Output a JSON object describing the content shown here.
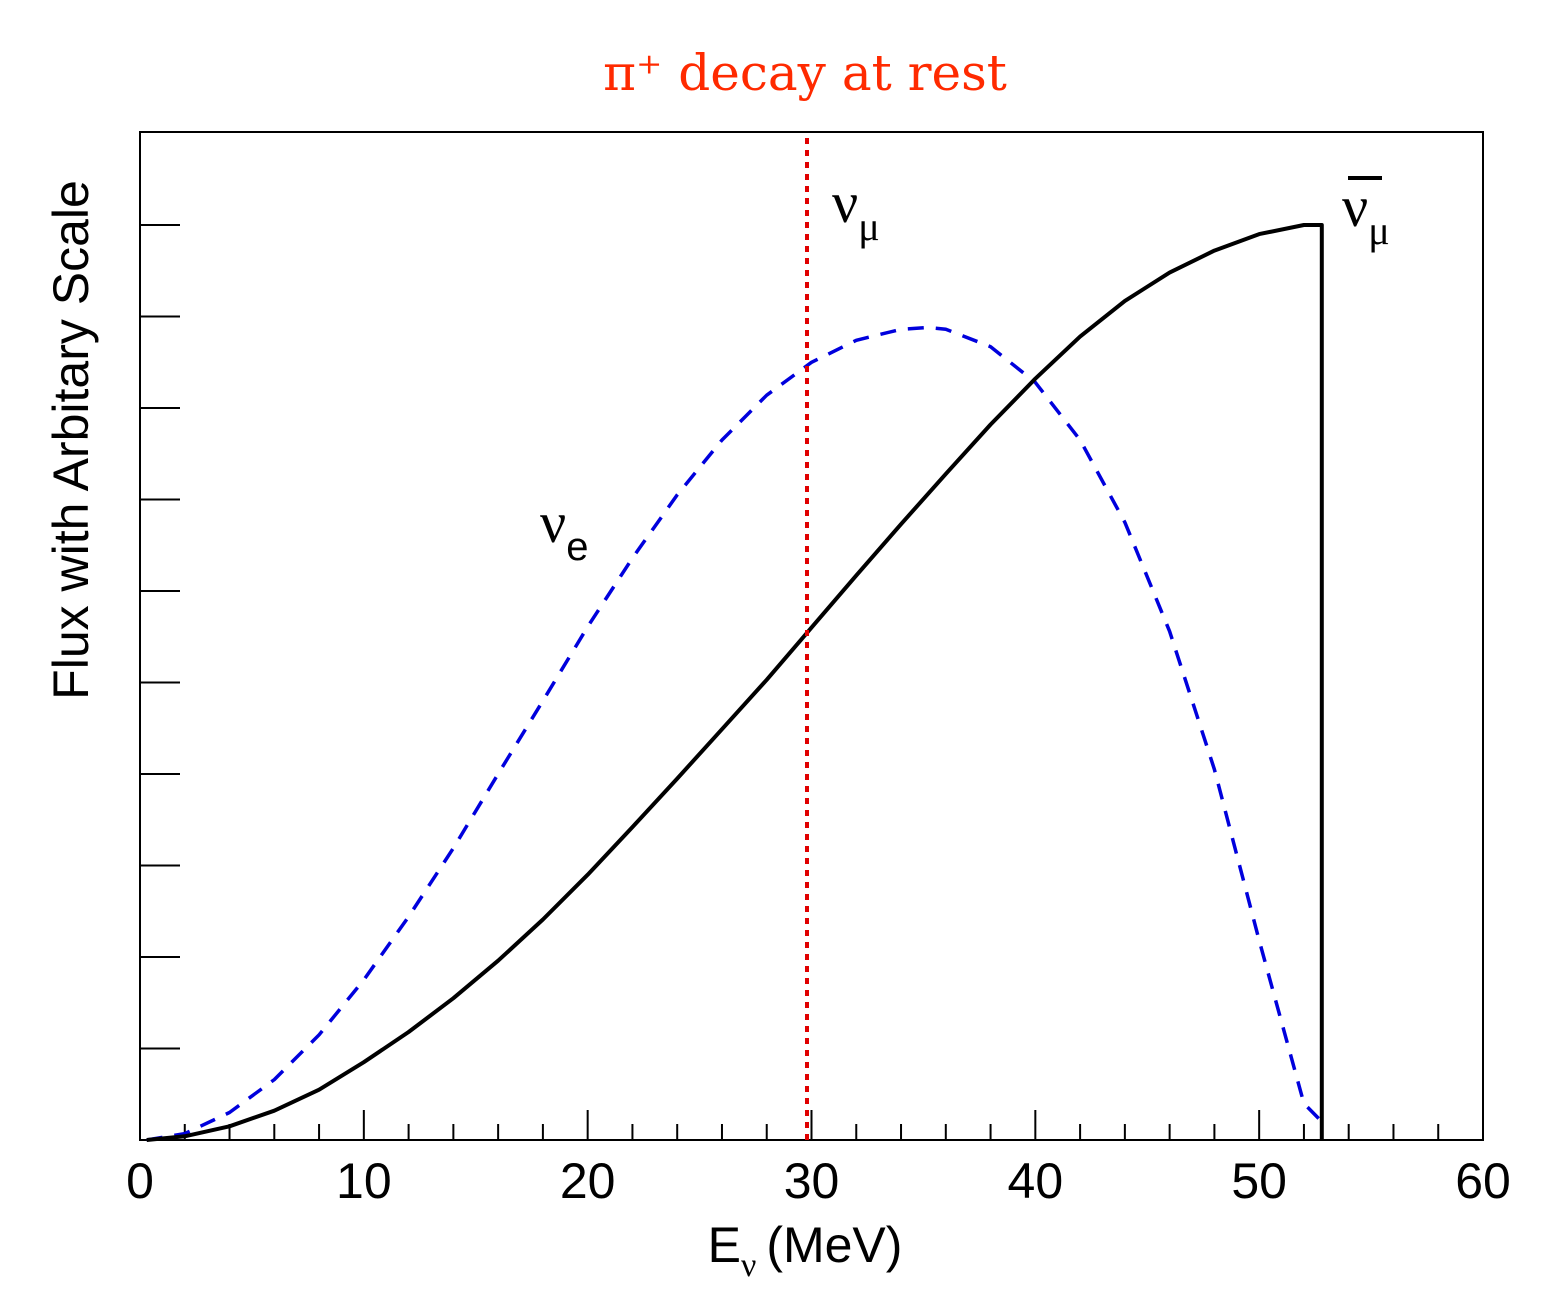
{
  "chart_data": {
    "type": "line",
    "title": "π⁺ decay at rest",
    "title_color": "#ff2a00",
    "xlabel": "E_ν (MeV)",
    "xlabel_main": "E",
    "xlabel_sub": "ν",
    "xlabel_unit": "(MeV)",
    "ylabel": "Flux with Arbitary Scale",
    "xlim": [
      0,
      60
    ],
    "ylim": [
      0,
      1.0
    ],
    "x_ticks": [
      0,
      10,
      20,
      30,
      40,
      50,
      60
    ],
    "x_tick_labels": [
      "0",
      "10",
      "20",
      "30",
      "40",
      "50",
      "60"
    ],
    "y_tick_labels_shown": false,
    "grid": false,
    "series": [
      {
        "name": "ν̄_μ",
        "label_main": "ν",
        "label_sub": "μ",
        "label_bar": true,
        "style": "solid",
        "color": "#000000",
        "x": [
          0.3,
          2,
          4,
          6,
          8,
          10,
          12,
          14,
          16,
          18,
          20,
          22,
          24,
          26,
          28,
          30,
          32,
          34,
          36,
          38,
          40,
          42,
          44,
          46,
          48,
          50,
          52,
          52.8,
          52.8
        ],
        "y": [
          0,
          0.004,
          0.015,
          0.032,
          0.055,
          0.085,
          0.118,
          0.155,
          0.196,
          0.241,
          0.29,
          0.342,
          0.395,
          0.449,
          0.503,
          0.56,
          0.617,
          0.673,
          0.728,
          0.782,
          0.832,
          0.878,
          0.917,
          0.948,
          0.972,
          0.99,
          1.0,
          1.0,
          0
        ]
      },
      {
        "name": "ν_e",
        "label_main": "ν",
        "label_sub": "e",
        "style": "dashed",
        "color": "#0000dd",
        "x": [
          0.3,
          2,
          4,
          6,
          8,
          10,
          12,
          14,
          16,
          18,
          20,
          22,
          24,
          26,
          28,
          30,
          32,
          34,
          35.2,
          36,
          38,
          40,
          42,
          44,
          46,
          48,
          50,
          52,
          52.8
        ],
        "y": [
          0,
          0.007,
          0.03,
          0.066,
          0.115,
          0.175,
          0.244,
          0.319,
          0.4,
          0.48,
          0.561,
          0.636,
          0.705,
          0.765,
          0.814,
          0.85,
          0.874,
          0.886,
          0.888,
          0.886,
          0.867,
          0.828,
          0.765,
          0.675,
          0.556,
          0.405,
          0.218,
          0.04,
          0.02
        ]
      },
      {
        "name": "ν_μ",
        "label_main": "ν",
        "label_sub": "μ",
        "style": "dotted",
        "color": "#e00000",
        "x": [
          29.8,
          29.8
        ],
        "y": [
          0,
          1.1
        ]
      }
    ]
  }
}
